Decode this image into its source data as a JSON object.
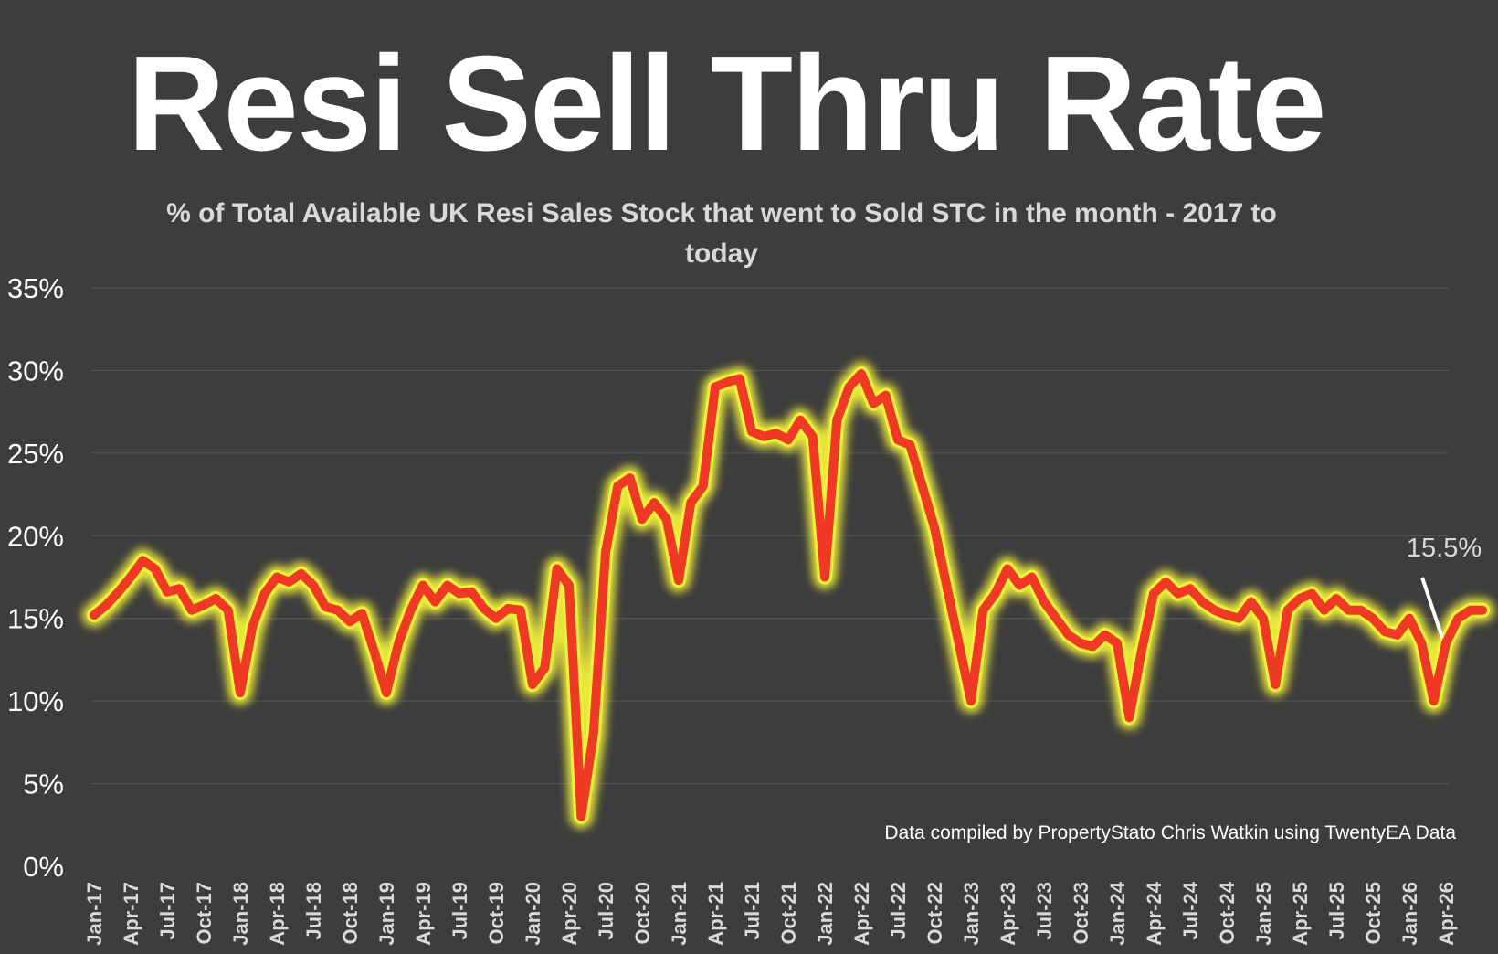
{
  "title": "Resi Sell Thru Rate",
  "subtitle": "% of Total Available UK Resi Sales Stock that went to Sold STC in the month - 2017 to today",
  "credit": "Data compiled by PropertyStato Chris Watkin using TwentyEA Data",
  "colors": {
    "background": "#3d3d3d",
    "line": "#ee3a24",
    "glow": "#f1f03a",
    "gridline": "#595959",
    "text": "#ffffff"
  },
  "chart_data": {
    "type": "line",
    "title": "Resi Sell Thru Rate",
    "subtitle": "% of Total Available UK Resi Sales Stock that went to Sold STC in the month - 2017 to today",
    "ylabel": "",
    "xlabel": "",
    "ylim": [
      0,
      35
    ],
    "y_ticks": [
      "0%",
      "5%",
      "10%",
      "15%",
      "20%",
      "25%",
      "30%",
      "35%"
    ],
    "x_tick_labels": [
      "Jan-17",
      "Apr-17",
      "Jul-17",
      "Oct-17",
      "Jan-18",
      "Apr-18",
      "Jul-18",
      "Oct-18",
      "Jan-19",
      "Apr-19",
      "Jul-19",
      "Oct-19",
      "Jan-20",
      "Apr-20",
      "Jul-20",
      "Oct-20",
      "Jan-21",
      "Apr-21",
      "Jul-21",
      "Oct-21",
      "Jan-22",
      "Apr-22",
      "Jul-22",
      "Oct-22",
      "Jan-23",
      "Apr-23",
      "Jul-23",
      "Oct-23",
      "Jan-24",
      "Apr-24",
      "Jul-24",
      "Oct-24",
      "Jan-25",
      "Apr-25",
      "Jul-25",
      "Oct-25",
      "Jan-26",
      "Apr-26"
    ],
    "grid": true,
    "legend": "none",
    "annotation": {
      "label": "15.5%",
      "month_index": 111
    },
    "series": [
      {
        "name": "Sell Thru Rate",
        "start": "Jan-17",
        "values": [
          15.2,
          15.8,
          16.6,
          17.5,
          18.5,
          18.0,
          16.6,
          16.8,
          15.5,
          15.8,
          16.2,
          15.5,
          10.5,
          14.5,
          16.5,
          17.5,
          17.2,
          17.7,
          17.0,
          15.7,
          15.5,
          14.8,
          15.3,
          13.0,
          10.5,
          13.5,
          15.5,
          17.0,
          16.0,
          17.0,
          16.5,
          16.6,
          15.6,
          15.0,
          15.6,
          15.5,
          11.0,
          12.0,
          18.0,
          17.0,
          3.0,
          8.0,
          19.0,
          23.0,
          23.5,
          21.0,
          22.0,
          21.0,
          17.3,
          22.0,
          23.0,
          29.0,
          29.3,
          29.5,
          26.3,
          26.0,
          26.2,
          25.8,
          27.0,
          26.0,
          17.5,
          27.0,
          29.0,
          29.8,
          28.0,
          28.5,
          25.8,
          25.5,
          23.0,
          20.5,
          17.0,
          13.5,
          10.0,
          15.5,
          16.5,
          18.0,
          17.0,
          17.5,
          16.0,
          15.0,
          14.0,
          13.5,
          13.3,
          14.0,
          13.5,
          9.0,
          13.0,
          16.5,
          17.2,
          16.5,
          16.8,
          16.0,
          15.5,
          15.2,
          15.0,
          16.0,
          15.0,
          11.0,
          15.5,
          16.2,
          16.5,
          15.5,
          16.2,
          15.5,
          15.5,
          15.0,
          14.2,
          14.0,
          15.0,
          13.5,
          10.0,
          13.5,
          15.0,
          15.5,
          15.5
        ]
      }
    ]
  }
}
